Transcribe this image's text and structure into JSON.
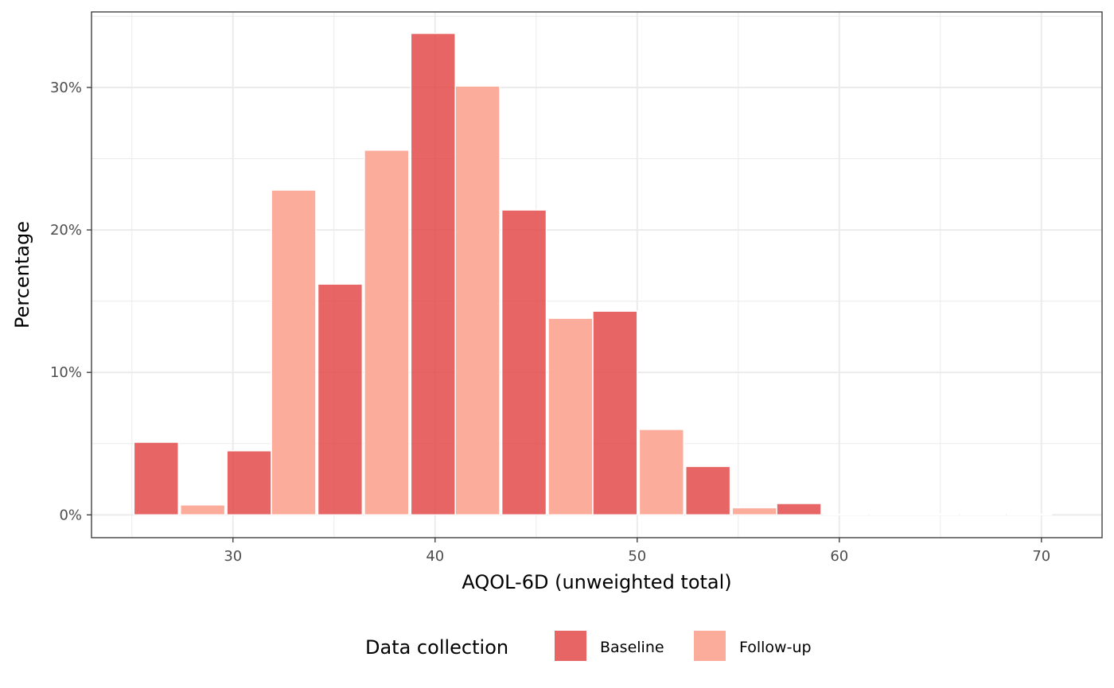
{
  "chart_data": {
    "type": "bar",
    "subtype": "histogram",
    "xlabel": "AQOL-6D (unweighted total)",
    "ylabel": "Percentage",
    "x_ticks": [
      "30",
      "40",
      "50",
      "60",
      "70"
    ],
    "x_tick_values": [
      30,
      40,
      50,
      60,
      70
    ],
    "y_ticks": [
      "0%",
      "10%",
      "20%",
      "30%"
    ],
    "y_tick_values": [
      0,
      10,
      20,
      30
    ],
    "xlim": [
      23,
      73
    ],
    "ylim": [
      -1.6,
      35.3
    ],
    "grid": true,
    "legend": {
      "title": "Data collection",
      "position": "bottom"
    },
    "bin_width": 2.27,
    "series": [
      {
        "name": "Baseline",
        "color": "#e34a4a",
        "bins": [
          {
            "x_start": 25.1,
            "x_end": 27.3,
            "value": 5.1
          },
          {
            "x_start": 29.7,
            "x_end": 31.9,
            "value": 4.5
          },
          {
            "x_start": 34.2,
            "x_end": 36.4,
            "value": 16.2
          },
          {
            "x_start": 38.8,
            "x_end": 41.0,
            "value": 33.8
          },
          {
            "x_start": 43.3,
            "x_end": 45.5,
            "value": 21.4
          },
          {
            "x_start": 47.8,
            "x_end": 50.0,
            "value": 14.3
          },
          {
            "x_start": 52.4,
            "x_end": 54.6,
            "value": 3.4
          },
          {
            "x_start": 56.9,
            "x_end": 59.1,
            "value": 0.8
          },
          {
            "x_start": 61.5,
            "x_end": 63.7,
            "value": 0
          },
          {
            "x_start": 66.0,
            "x_end": 68.2,
            "value": 0
          }
        ]
      },
      {
        "name": "Follow-up",
        "color": "#fca896",
        "bins": [
          {
            "x_start": 27.4,
            "x_end": 29.6,
            "value": 0.7
          },
          {
            "x_start": 31.9,
            "x_end": 34.1,
            "value": 22.8
          },
          {
            "x_start": 36.5,
            "x_end": 38.7,
            "value": 25.6
          },
          {
            "x_start": 41.0,
            "x_end": 43.2,
            "value": 30.1
          },
          {
            "x_start": 45.6,
            "x_end": 47.8,
            "value": 13.8
          },
          {
            "x_start": 50.1,
            "x_end": 52.3,
            "value": 6.0
          },
          {
            "x_start": 54.7,
            "x_end": 56.9,
            "value": 0.5
          },
          {
            "x_start": 59.2,
            "x_end": 61.4,
            "value": 0
          },
          {
            "x_start": 63.7,
            "x_end": 65.9,
            "value": 0
          },
          {
            "x_start": 68.3,
            "x_end": 70.5,
            "value": 0
          }
        ]
      }
    ]
  }
}
